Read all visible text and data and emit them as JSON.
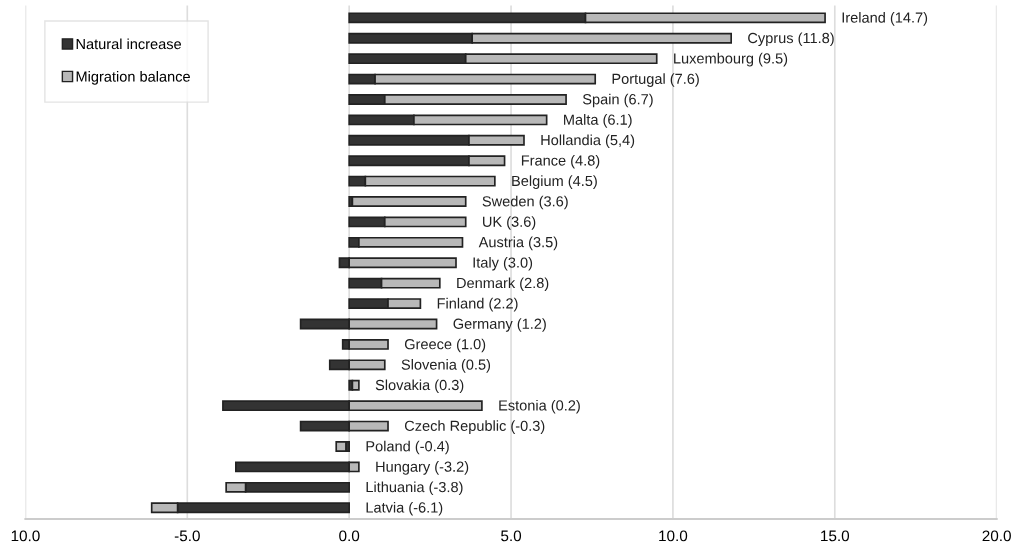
{
  "chart_data": {
    "type": "bar",
    "orientation": "horizontal",
    "stacked": true,
    "categories": [
      "Ireland (14.7)",
      "Cyprus (11.8)",
      "Luxembourg (9.5)",
      "Portugal (7.6)",
      "Spain (6.7)",
      "Malta (6.1)",
      "Hollandia (5,4)",
      "France (4.8)",
      "Belgium (4.5)",
      "Sweden (3.6)",
      "UK (3.6)",
      "Austria (3.5)",
      "Italy (3.0)",
      "Denmark (2.8)",
      "Finland (2.2)",
      "Germany (1.2)",
      "Greece (1.0)",
      "Slovenia (0.5)",
      "Slovakia (0.3)",
      "Estonia (0.2)",
      "Czech Republic (-0.3)",
      "Poland (-0.4)",
      "Hungary (-3.2)",
      "Lithuania (-3.8)",
      "Latvia (-6.1)"
    ],
    "series": [
      {
        "name": "Natural increase",
        "color": "#333333",
        "values": [
          7.3,
          3.8,
          3.6,
          0.8,
          1.1,
          2.0,
          3.7,
          3.7,
          0.5,
          0.1,
          1.1,
          0.3,
          -0.3,
          1.0,
          1.2,
          -1.5,
          -0.2,
          -0.6,
          0.1,
          -3.9,
          -1.5,
          -0.1,
          -3.5,
          -3.2,
          -5.3
        ]
      },
      {
        "name": "Migration balance",
        "color": "#b8b8b8",
        "values": [
          7.4,
          8.0,
          5.9,
          6.8,
          5.6,
          4.1,
          1.7,
          1.1,
          4.0,
          3.5,
          2.5,
          3.2,
          3.3,
          1.8,
          1.0,
          2.7,
          1.2,
          1.1,
          0.2,
          4.1,
          1.2,
          -0.3,
          0.3,
          -0.6,
          -0.8
        ]
      }
    ],
    "xlim": [
      -10,
      20
    ],
    "xticks": [
      {
        "value": -10,
        "label": "10.0"
      },
      {
        "value": -5,
        "label": "-5.0"
      },
      {
        "value": 0,
        "label": "0.0"
      },
      {
        "value": 5,
        "label": "5.0"
      },
      {
        "value": 10,
        "label": "10.0"
      },
      {
        "value": 15,
        "label": "15.0"
      },
      {
        "value": 20,
        "label": "20.0"
      }
    ],
    "grid": "x",
    "legend": "top left",
    "tick_labels": "x"
  }
}
